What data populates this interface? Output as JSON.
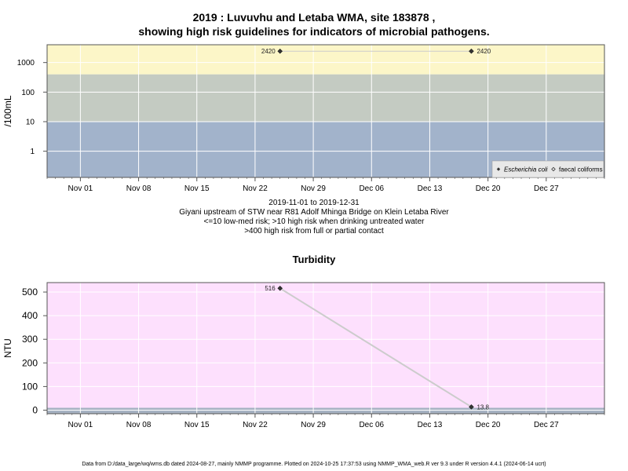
{
  "chart_data": [
    {
      "type": "scatter",
      "title_line1": "2019 : Luvuvhu and Letaba WMA, site 183878 ,",
      "title_line2": "showing high risk guidelines for indicators of microbial pathogens.",
      "ylabel": "/100mL",
      "yscale": "log",
      "yticks": [
        1,
        10,
        100,
        1000
      ],
      "ytick_labels": [
        "1",
        "10",
        "100",
        "1000"
      ],
      "xlim": [
        "2019-10-28",
        "2020-01-03"
      ],
      "xticks": [
        "2019-11-01",
        "2019-11-08",
        "2019-11-15",
        "2019-11-22",
        "2019-11-29",
        "2019-12-06",
        "2019-12-13",
        "2019-12-20",
        "2019-12-27"
      ],
      "xtick_labels": [
        "Nov 01",
        "Nov 08",
        "Nov 15",
        "Nov 22",
        "Nov 29",
        "Dec 06",
        "Dec 13",
        "Dec 20",
        "Dec 27"
      ],
      "bands": [
        {
          "from": 0.13,
          "to": 10,
          "color": "#a2b3cb"
        },
        {
          "from": 10,
          "to": 400,
          "color": "#c4cbc2"
        },
        {
          "from": 400,
          "to": 4000,
          "color": "#fcf6c8"
        }
      ],
      "series": [
        {
          "name": "Escherichia coli",
          "marker": "filled",
          "x": [
            "2019-11-25",
            "2019-12-18"
          ],
          "y": [
            2420,
            2420
          ],
          "labels": [
            "2420",
            "2420"
          ]
        },
        {
          "name": "faecal coliforms",
          "marker": "open",
          "x": [],
          "y": [],
          "labels": []
        }
      ],
      "legend": "bottom-right",
      "grid": true,
      "caption": [
        "2019-11-01 to 2019-12-31",
        "Giyani upstream of STW near R81 Adolf Mhinga Bridge on Klein Letaba River",
        "<=10 low-med risk; >10 high risk when drinking untreated water",
        ">400 high risk from full or partial contact"
      ]
    },
    {
      "type": "line",
      "title": "Turbidity",
      "ylabel": "NTU",
      "ylim": [
        -15,
        540
      ],
      "yticks": [
        0,
        100,
        200,
        300,
        400,
        500
      ],
      "ytick_labels": [
        "0",
        "100",
        "200",
        "300",
        "400",
        "500"
      ],
      "xlim": [
        "2019-10-28",
        "2020-01-03"
      ],
      "xticks": [
        "2019-11-01",
        "2019-11-08",
        "2019-11-15",
        "2019-11-22",
        "2019-11-29",
        "2019-12-06",
        "2019-12-13",
        "2019-12-20",
        "2019-12-27"
      ],
      "xtick_labels": [
        "Nov 01",
        "Nov 08",
        "Nov 15",
        "Nov 22",
        "Nov 29",
        "Dec 06",
        "Dec 13",
        "Dec 20",
        "Dec 27"
      ],
      "bands": [
        {
          "from": -15,
          "to": 10,
          "color": "#a6b2c2"
        },
        {
          "from": 10,
          "to": 540,
          "color": "#fde0fd"
        }
      ],
      "series": [
        {
          "name": "",
          "x": [
            "2019-11-25",
            "2019-12-18"
          ],
          "y": [
            516,
            13.8
          ],
          "labels": [
            "516",
            "13.8"
          ]
        }
      ],
      "grid": true
    }
  ],
  "footer": "Data from D:/data_large/wq/wms.db dated 2024-08-27, mainly NMMP programme. Plotted on 2024-10-25 17:37:53 using NMMP_WMA_web.R ver 9.3 under R version 4.4.1 (2024-06-14 ucrt)",
  "colors": {
    "axis": "#555555",
    "grid": "#ffffff",
    "marker": "#333333",
    "line": "#cccccc"
  }
}
